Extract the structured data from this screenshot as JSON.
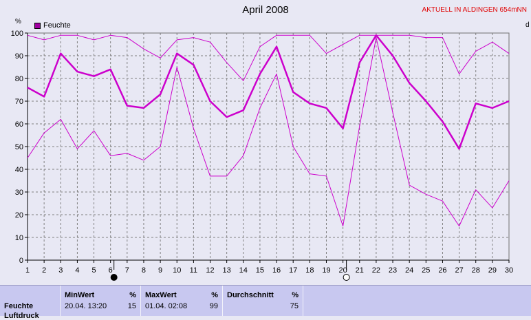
{
  "title": "April 2008",
  "station": "AKTUELL IN ALDINGEN 654mNN",
  "unit": "%",
  "edge_letter": "d",
  "colors": {
    "series": "#cc00cc",
    "grid": "#808080",
    "axis": "#000000",
    "plot_bg": "#e8e8f4"
  },
  "chart_data": {
    "type": "line",
    "title": "April 2008",
    "xlabel": "",
    "ylabel": "%",
    "legend": "top-left",
    "grid": true,
    "xlim": [
      1,
      30
    ],
    "ylim": [
      0,
      100
    ],
    "yticks": [
      0,
      10,
      20,
      30,
      40,
      50,
      60,
      70,
      80,
      90,
      100
    ],
    "x": [
      1,
      2,
      3,
      4,
      5,
      6,
      7,
      8,
      9,
      10,
      11,
      12,
      13,
      14,
      15,
      16,
      17,
      18,
      19,
      20,
      21,
      22,
      23,
      24,
      25,
      26,
      27,
      28,
      29,
      30
    ],
    "series": [
      {
        "name": "Feuchte",
        "role": "avg",
        "values": [
          76,
          72,
          91,
          83,
          81,
          84,
          68,
          67,
          73,
          91,
          86,
          70,
          63,
          66,
          82,
          94,
          74,
          69,
          67,
          58,
          87,
          99,
          90,
          78,
          70,
          61,
          49,
          69,
          67,
          70
        ]
      },
      {
        "role": "max",
        "values": [
          99,
          97,
          99,
          99,
          97,
          99,
          98,
          93,
          89,
          97,
          98,
          96,
          87,
          79,
          94,
          99,
          99,
          99,
          91,
          95,
          99,
          99,
          99,
          99,
          98,
          98,
          82,
          92,
          96,
          91
        ]
      },
      {
        "role": "min",
        "values": [
          45,
          56,
          62,
          49,
          57,
          46,
          47,
          44,
          50,
          85,
          58,
          37,
          37,
          46,
          67,
          82,
          50,
          38,
          37,
          15,
          59,
          98,
          65,
          33,
          29,
          26,
          15,
          31,
          23,
          35
        ]
      }
    ],
    "moon_phases": [
      {
        "day": 6,
        "phase": "new-moon"
      },
      {
        "day": 20,
        "phase": "full-moon"
      }
    ]
  },
  "stats": {
    "row_label": "Feuchte",
    "row_label_2": "Luftdruck",
    "min": {
      "header": "MinWert",
      "unit": "%",
      "time": "20.04.  13:20",
      "value": "15"
    },
    "max": {
      "header": "MaxWert",
      "unit": "%",
      "time": "01.04.  02:08",
      "value": "99"
    },
    "avg": {
      "header": "Durchschnitt",
      "unit": "%",
      "value": "75"
    }
  }
}
